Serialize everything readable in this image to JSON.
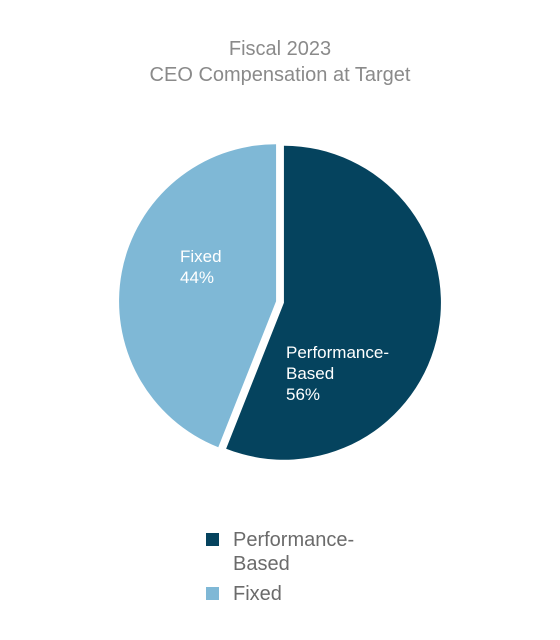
{
  "chart_data": {
    "type": "pie",
    "title_line1": "Fiscal 2023",
    "title_line2": "CEO Compensation at Target",
    "slices": [
      {
        "name": "Performance-Based",
        "value": 56,
        "label_line1": "Performance-",
        "label_line2": "Based",
        "label_value": "56%",
        "color": "#05435e"
      },
      {
        "name": "Fixed",
        "value": 44,
        "label_line1": "Fixed",
        "label_value": "44%",
        "color": "#7fb8d6"
      }
    ],
    "legend": [
      {
        "label": "Performance-\nBased",
        "color": "#05435e"
      },
      {
        "label": "Fixed",
        "color": "#7fb8d6"
      }
    ],
    "legend_position": "bottom"
  }
}
